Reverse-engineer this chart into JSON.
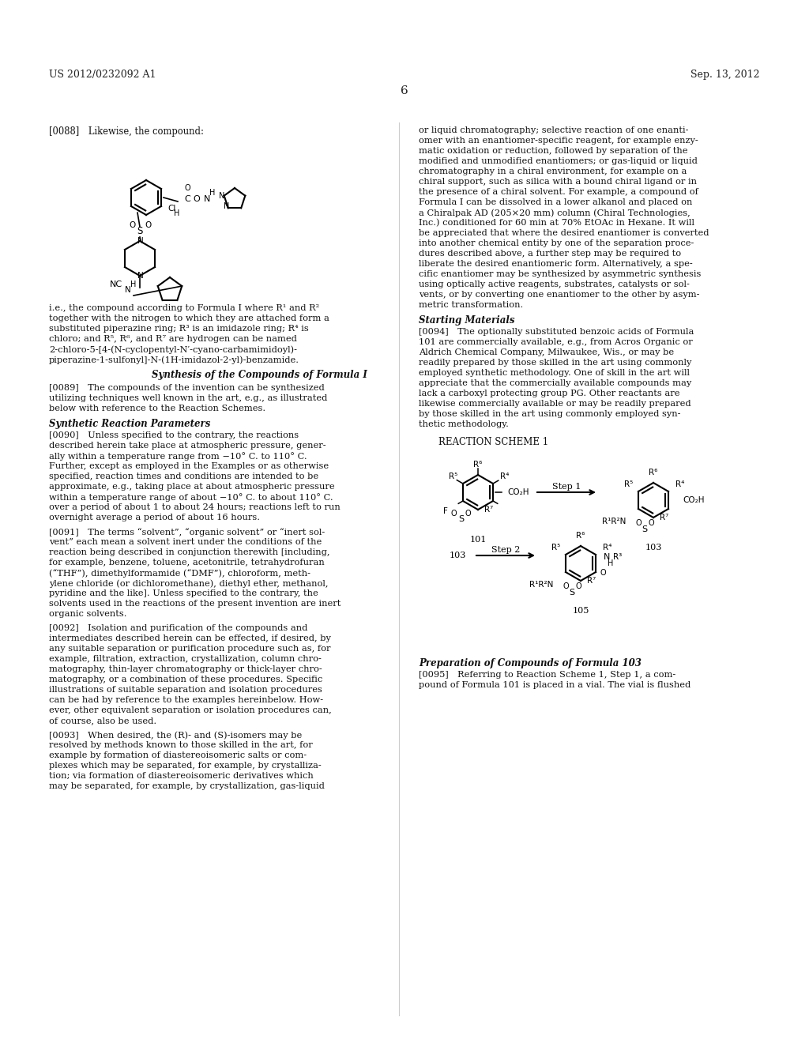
{
  "background_color": "#ffffff",
  "page_number": "6",
  "header_left": "US 2012/0232092 A1",
  "header_right": "Sep. 13, 2012",
  "left_column": {
    "paragraph_088": "[0088] Likewise, the compound:",
    "compound_note": "i.e., the compound according to Formula I where R¹ and R²\ntogether with the nitrogen to which they are attached form a\nsubstituted piperazine ring; R³ is an imidazole ring; R⁴ is\nchloro; and R⁵, R⁶, and R⁷ are hydrogen can be named\n2-chloro-5-[4-(N-cyclopentyl-N′-cyano-carbamimidoyl)-\npiperazine-1-sulfonyl]-N-(1H-imidazol-2-yl)-benzamide.",
    "synthesis_heading": "Synthesis of the Compounds of Formula I",
    "paragraph_089": "[0089] The compounds of the invention can be synthesized\nutilizing techniques well known in the art, e.g., as illustrated\nbelow with reference to the Reaction Schemes.",
    "synthetic_heading": "Synthetic Reaction Parameters",
    "paragraph_090": "[0090] Unless specified to the contrary, the reactions\ndescribed herein take place at atmospheric pressure, gener-\nally within a temperature range from −10° C. to 110° C.\nFurther, except as employed in the Examples or as otherwise\nspecified, reaction times and conditions are intended to be\napproximate, e.g., taking place at about atmospheric pressure\nwithin a temperature range of about −10° C. to about 110° C.\nover a period of about 1 to about 24 hours; reactions left to run\novernight average a period of about 16 hours.",
    "paragraph_091": "[0091] The terms “solvent”, “organic solvent” or “inert sol-\nvent” each mean a solvent inert under the conditions of the\nreaction being described in conjunction therewith [including,\nfor example, benzene, toluene, acetonitrile, tetrahydrofuran\n(“THF”), dimethylformamide (“DMF”), chloroform, meth-\nylene chloride (or dichloromethane), diethyl ether, methanol,\npyridine and the like]. Unless specified to the contrary, the\nsolvents used in the reactions of the present invention are inert\norganic solvents.",
    "paragraph_092": "[0092] Isolation and purification of the compounds and\nintermediates described herein can be effected, if desired, by\nany suitable separation or purification procedure such as, for\nexample, filtration, extraction, crystallization, column chro-\nmatography, thin-layer chromatography or thick-layer chro-\nmatography, or a combination of these procedures. Specific\nillustrations of suitable separation and isolation procedures\ncan be had by reference to the examples hereinbelow. How-\never, other equivalent separation or isolation procedures can,\nof course, also be used.",
    "paragraph_093": "[0093] When desired, the (R)- and (S)-isomers may be\nresolved by methods known to those skilled in the art, for\nexample by formation of diastereoisomeric salts or com-\nplexes which may be separated, for example, by crystalliza-\ntion; via formation of diastereoisomeric derivatives which\nmay be separated, for example, by crystallization, gas-liquid"
  },
  "right_column": {
    "paragraph_cont": "or liquid chromatography; selective reaction of one enanti-\nomer with an enantiomer-specific reagent, for example enzy-\nmatic oxidation or reduction, followed by separation of the\nmodified and unmodified enantiomers; or gas-liquid or liquid\nchromatography in a chiral environment, for example on a\nchiral support, such as silica with a bound chiral ligand or in\nthe presence of a chiral solvent. For example, a compound of\nFormula I can be dissolved in a lower alkanol and placed on\na Chiralpak AD (205×20 mm) column (Chiral Technologies,\nInc.) conditioned for 60 min at 70% EtOAc in Hexane. It will\nbe appreciated that where the desired enantiomer is converted\ninto another chemical entity by one of the separation proce-\ndures described above, a further step may be required to\nliberate the desired enantiomeric form. Alternatively, a spe-\ncific enantiomer may be synthesized by asymmetric synthesis\nusing optically active reagents, substrates, catalysts or sol-\nvents, or by converting one enantiomer to the other by asym-\nmetric transformation.",
    "starting_heading": "Starting Materials",
    "paragraph_094": "[0094] The optionally substituted benzoic acids of Formula\n101 are commercially available, e.g., from Acros Organic or\nAldrich Chemical Company, Milwaukee, Wis., or may be\nreadily prepared by those skilled in the art using commonly\nemployed synthetic methodology. One of skill in the art will\nappreciate that the commercially available compounds may\nlack a carboxyl protecting group PG. Other reactants are\nlikewise commercially available or may be readily prepared\nby those skilled in the art using commonly employed syn-\nthetic methodology.",
    "reaction_scheme_title": "REACTION SCHEME 1",
    "preparation_heading": "Preparation of Compounds of Formula 103",
    "paragraph_095": "[0095] Referring to Reaction Scheme 1, Step 1, a com-\npound of Formula 101 is placed in a vial. The vial is flushed"
  }
}
